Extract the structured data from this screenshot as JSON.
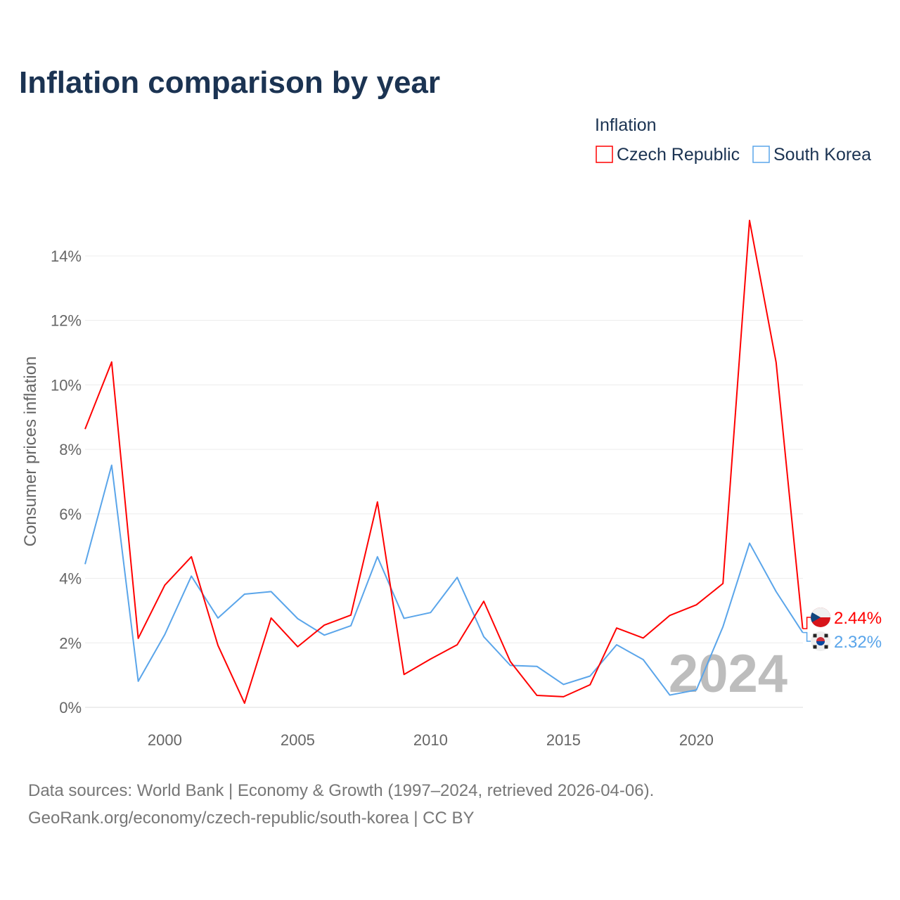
{
  "chart_data": {
    "type": "line",
    "title": "Inflation comparison by year",
    "ylabel": "Consumer prices inflation",
    "xlabel": "",
    "legend_title": "Inflation",
    "legend_position": "top-right",
    "ylim": [
      -0.4,
      15.4
    ],
    "xlim": [
      1997,
      2024
    ],
    "yticks": [
      0,
      2,
      4,
      6,
      8,
      10,
      12,
      14
    ],
    "ytick_labels": [
      "0%",
      "2%",
      "4%",
      "6%",
      "8%",
      "10%",
      "12%",
      "14%"
    ],
    "xticks": [
      2000,
      2005,
      2010,
      2015,
      2020
    ],
    "xtick_labels": [
      "2000",
      "2005",
      "2010",
      "2015",
      "2020"
    ],
    "grid": true,
    "x": [
      1997,
      1998,
      1999,
      2000,
      2001,
      2002,
      2003,
      2004,
      2005,
      2006,
      2007,
      2008,
      2009,
      2010,
      2011,
      2012,
      2013,
      2014,
      2015,
      2016,
      2017,
      2018,
      2019,
      2020,
      2021,
      2022,
      2023,
      2024
    ],
    "series": [
      {
        "name": "Czech Republic",
        "color": "#ff0000",
        "end_label": "2.44%",
        "values": [
          8.63,
          10.71,
          2.14,
          3.79,
          4.67,
          1.92,
          0.13,
          2.77,
          1.88,
          2.55,
          2.86,
          6.37,
          1.02,
          1.5,
          1.94,
          3.29,
          1.42,
          0.37,
          0.33,
          0.7,
          2.46,
          2.15,
          2.85,
          3.18,
          3.84,
          15.1,
          10.7,
          2.44
        ]
      },
      {
        "name": "South Korea",
        "color": "#5aa5ea",
        "end_label": "2.32%",
        "values": [
          4.44,
          7.51,
          0.81,
          2.26,
          4.07,
          2.77,
          3.51,
          3.59,
          2.75,
          2.24,
          2.53,
          4.67,
          2.76,
          2.94,
          4.03,
          2.19,
          1.3,
          1.27,
          0.71,
          0.97,
          1.94,
          1.48,
          0.38,
          0.54,
          2.5,
          5.09,
          3.59,
          2.32
        ]
      }
    ],
    "year_watermark": "2024",
    "source_line1": "Data sources: World Bank | Economy & Growth (1997–2024, retrieved 2026-04-06).",
    "source_line2": "GeoRank.org/economy/czech-republic/south-korea | CC BY"
  }
}
